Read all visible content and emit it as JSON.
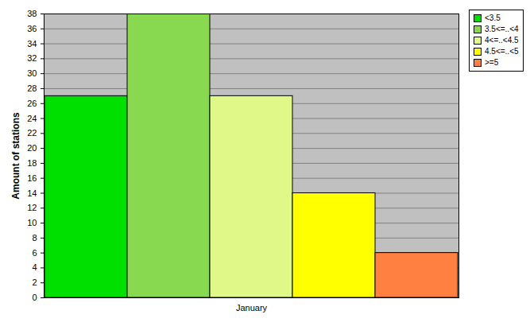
{
  "chart_data": {
    "type": "bar",
    "categories": [
      "January"
    ],
    "series": [
      {
        "name": "<3.5",
        "color": "#00e000",
        "values": [
          27
        ]
      },
      {
        "name": "3.5<=..<4",
        "color": "#88d850",
        "values": [
          38
        ]
      },
      {
        "name": "4<=..<4.5",
        "color": "#e0f888",
        "values": [
          27
        ]
      },
      {
        "name": "4.5<=..<5",
        "color": "#ffff00",
        "values": [
          14
        ]
      },
      {
        "name": ">=5",
        "color": "#ff8040",
        "values": [
          6
        ]
      }
    ],
    "ylabel": "Amount of stations",
    "ylim": [
      0,
      38
    ],
    "yticks": [
      0,
      2,
      4,
      6,
      8,
      10,
      12,
      14,
      16,
      18,
      20,
      22,
      24,
      26,
      28,
      30,
      32,
      34,
      36,
      38
    ],
    "grid": true,
    "legend": "top-right"
  }
}
